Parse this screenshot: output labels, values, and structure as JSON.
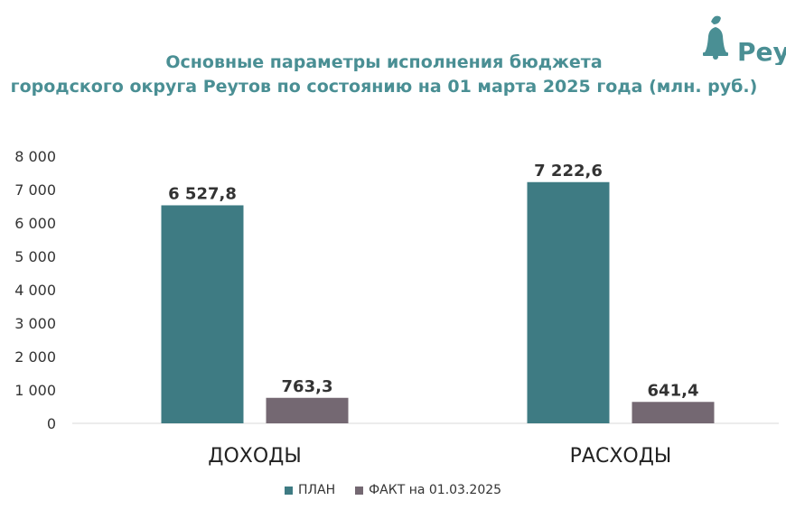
{
  "chart_data": {
    "type": "bar",
    "title": [
      "Основные параметры исполнения бюджета",
      "городского округа Реутов по состоянию на 01 марта 2025 года (млн. руб.)"
    ],
    "categories": [
      "ДОХОДЫ",
      "РАСХОДЫ"
    ],
    "series": [
      {
        "name": "ПЛАН",
        "values": [
          6527.8,
          7222.6
        ],
        "labels": [
          "6 527,8",
          "7 222,6"
        ],
        "color": "#3e7b83"
      },
      {
        "name": "ФАКТ на 01.03.2025",
        "values": [
          763.3,
          641.4
        ],
        "labels": [
          "763,3",
          "641,4"
        ],
        "color": "#746872"
      }
    ],
    "ylim": [
      0,
      8000
    ],
    "yticks": [
      0,
      1000,
      2000,
      3000,
      4000,
      5000,
      6000,
      7000,
      8000
    ],
    "ytick_labels": [
      "0",
      "1 000",
      "2 000",
      "3 000",
      "4 000",
      "5 000",
      "6 000",
      "7 000",
      "8 000"
    ],
    "grid": false,
    "legend": "bottom"
  },
  "logo": {
    "text": "Реу",
    "color": "#4a8f94"
  }
}
